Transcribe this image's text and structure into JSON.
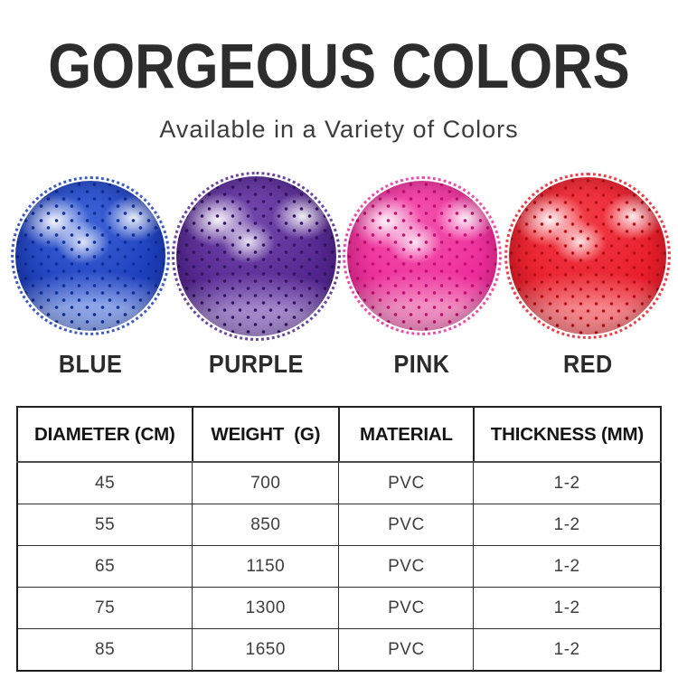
{
  "page": {
    "title": "GORGEOUS COLORS",
    "subtitle": "Available in a Variety of Colors"
  },
  "balls": {
    "items": [
      {
        "name": "BLUE",
        "dark": "#1e3fbe",
        "mid": "#3f66d8",
        "light": "#8fa6e8",
        "dot": "#0c2f99"
      },
      {
        "name": "PURPLE",
        "dark": "#53268f",
        "mid": "#7449ad",
        "light": "#a488cb",
        "dot": "#341463"
      },
      {
        "name": "PINK",
        "dark": "#ee2d9a",
        "mid": "#f254ae",
        "light": "#f290c3",
        "dot": "#c20d72"
      },
      {
        "name": "RED",
        "dark": "#e81e2b",
        "mid": "#f23d47",
        "light": "#f5868b",
        "dot": "#b80f17"
      }
    ]
  },
  "spec_table": {
    "headers": [
      "DIAMETER (CM)",
      "WEIGHT  (G)",
      "MATERIAL",
      "THICKNESS (MM)"
    ],
    "rows": [
      [
        "45",
        "700",
        "PVC",
        "1-2"
      ],
      [
        "55",
        "850",
        "PVC",
        "1-2"
      ],
      [
        "65",
        "1150",
        "PVC",
        "1-2"
      ],
      [
        "75",
        "1300",
        "PVC",
        "1-2"
      ],
      [
        "85",
        "1650",
        "PVC",
        "1-2"
      ]
    ]
  }
}
